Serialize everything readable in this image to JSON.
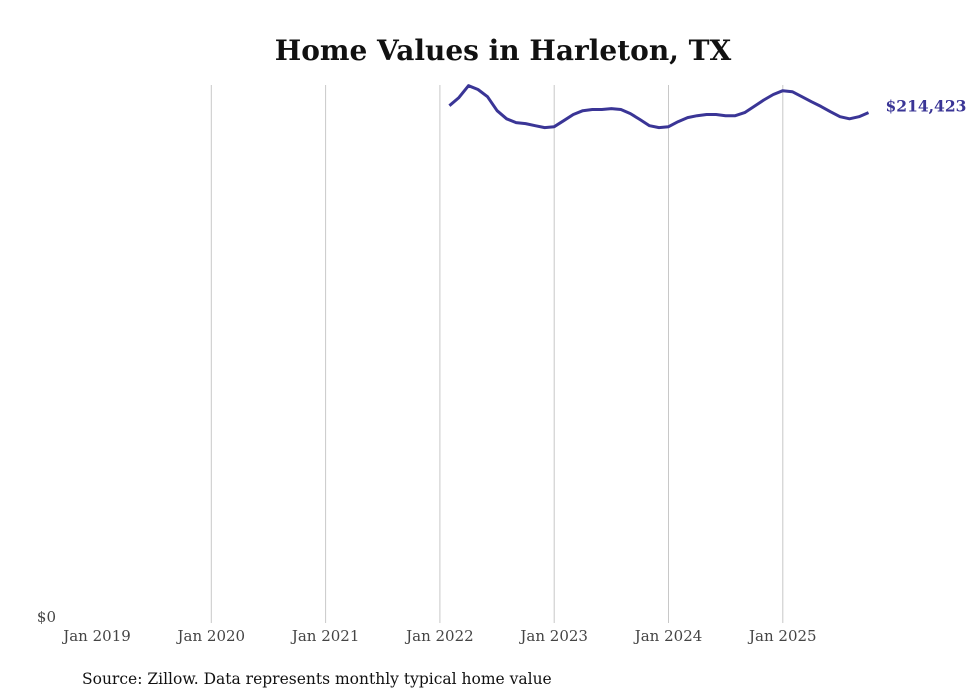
{
  "chart_data": {
    "type": "line",
    "title": "Home Values in Harleton, TX",
    "xlabel": "",
    "ylabel": "",
    "x_ticks": [
      "Jan 2019",
      "Jan 2020",
      "Jan 2021",
      "Jan 2022",
      "Jan 2023",
      "Jan 2024",
      "Jan 2025"
    ],
    "y_ticks": [
      "$0"
    ],
    "ylim": [
      0,
      226000
    ],
    "grid": "vertical",
    "series": [
      {
        "name": "Typical home value",
        "color": "#3a3596",
        "start_month": "2022-02",
        "values": [
          217300,
          220700,
          225700,
          224100,
          221100,
          215200,
          211800,
          210200,
          209800,
          208900,
          208100,
          208500,
          211000,
          213600,
          215200,
          215700,
          215700,
          216100,
          215700,
          214000,
          211500,
          208900,
          208100,
          208500,
          210600,
          212300,
          213100,
          213600,
          213600,
          213100,
          213100,
          214400,
          217000,
          219700,
          222000,
          223600,
          223200,
          221100,
          219000,
          217000,
          214800,
          212700,
          211800,
          212700,
          214423
        ]
      }
    ],
    "end_label": "$214,423",
    "source": "Source: Zillow. Data represents monthly typical home value"
  }
}
